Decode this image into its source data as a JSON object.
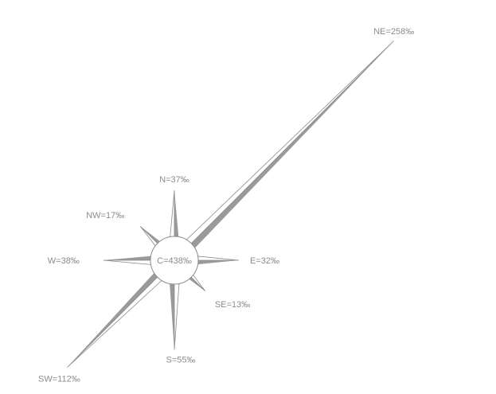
{
  "chart_data": {
    "type": "wind-rose",
    "unit": "‰",
    "directions": [
      {
        "dir": "N",
        "angle": 0,
        "value": 37,
        "label": "N=37‰"
      },
      {
        "dir": "NE",
        "angle": 45,
        "value": 258,
        "label": "NE=258‰"
      },
      {
        "dir": "E",
        "angle": 90,
        "value": 32,
        "label": "E=32‰"
      },
      {
        "dir": "SE",
        "angle": 135,
        "value": 13,
        "label": "SE=13‰"
      },
      {
        "dir": "S",
        "angle": 180,
        "value": 55,
        "label": "S=55‰"
      },
      {
        "dir": "SW",
        "angle": 225,
        "value": 112,
        "label": "SW=112‰"
      },
      {
        "dir": "W",
        "angle": 270,
        "value": 38,
        "label": "W=38‰"
      },
      {
        "dir": "NW",
        "angle": 315,
        "value": 17,
        "label": "NW=17‰"
      }
    ],
    "calm": {
      "value": 438,
      "label": "C=438‰"
    },
    "colors": {
      "fill": "#9a9a9a",
      "stroke": "#8c8c8c",
      "text": "#8c8c8c"
    }
  }
}
